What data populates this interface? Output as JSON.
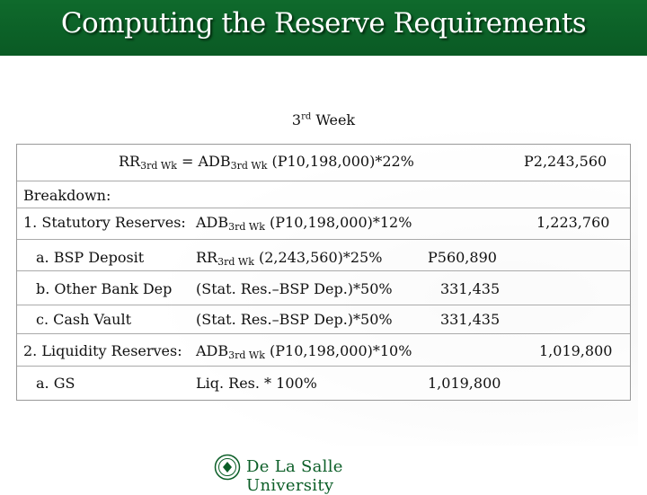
{
  "title": "Computing the Reserve Requirements",
  "week": {
    "ordinal": "3",
    "suffix": "rd",
    "label": " Week"
  },
  "formula": {
    "rr": "RR",
    "rr_sub": "3rd Wk",
    "eq": " = ADB",
    "adb_sub": "3rd Wk",
    "rest": " (P10,198,000)*22%",
    "result": "P2,243,560"
  },
  "breakdown_label": "Breakdown:",
  "rows": {
    "statutory": {
      "label": "1. Statutory Reserves:",
      "formula_pre": "ADB",
      "formula_sub": "3rd Wk",
      "formula_post": " (P10,198,000)*12%",
      "total": "1,223,760"
    },
    "bsp": {
      "label": "a. BSP Deposit",
      "formula_pre": "RR",
      "formula_sub": "3rd Wk",
      "formula_post": " (2,243,560)*25%",
      "value": "P560,890"
    },
    "other_bank": {
      "label": "b. Other Bank Dep",
      "formula": "(Stat. Res.–BSP Dep.)*50%",
      "value": "331,435"
    },
    "cash_vault": {
      "label": "c. Cash Vault",
      "formula": "(Stat. Res.–BSP Dep.)*50%",
      "value": "331,435"
    },
    "liquidity": {
      "label": "2. Liquidity Reserves:",
      "formula_pre": "ADB",
      "formula_sub": "3rd Wk",
      "formula_post": " (P10,198,000)*10%",
      "total": "1,019,800"
    },
    "gs": {
      "label": "a. GS",
      "formula": "Liq. Res. * 100%",
      "value": "1,019,800"
    }
  },
  "footer": {
    "logo_text": "De La Salle University",
    "seal_icon": "dlsu-seal-icon"
  },
  "colors": {
    "title_bar": "#0f6a2c",
    "logo_green": "#0b5e27"
  }
}
